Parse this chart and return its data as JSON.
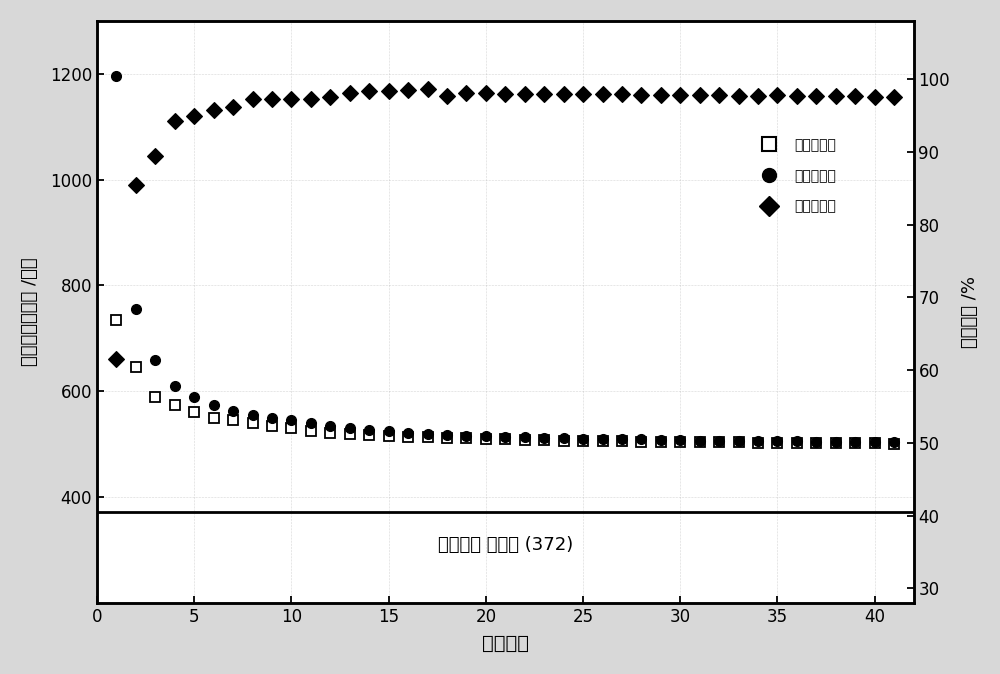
{
  "charge_x": [
    1,
    2,
    3,
    4,
    5,
    6,
    7,
    8,
    9,
    10,
    11,
    12,
    13,
    14,
    15,
    16,
    17,
    18,
    19,
    20,
    21,
    22,
    23,
    24,
    25,
    26,
    27,
    28,
    29,
    30,
    31,
    32,
    33,
    34,
    35,
    36,
    37,
    38,
    39,
    40,
    41
  ],
  "charge_y": [
    735,
    645,
    590,
    575,
    560,
    550,
    545,
    540,
    535,
    530,
    525,
    522,
    520,
    518,
    516,
    514,
    513,
    512,
    511,
    510,
    509,
    508,
    508,
    507,
    507,
    506,
    506,
    505,
    505,
    505,
    504,
    504,
    504,
    503,
    503,
    503,
    502,
    502,
    502,
    502,
    501
  ],
  "discharge_x": [
    1,
    2,
    3,
    4,
    5,
    6,
    7,
    8,
    9,
    10,
    11,
    12,
    13,
    14,
    15,
    16,
    17,
    18,
    19,
    20,
    21,
    22,
    23,
    24,
    25,
    26,
    27,
    28,
    29,
    30,
    31,
    32,
    33,
    34,
    35,
    36,
    37,
    38,
    39,
    40,
    41
  ],
  "discharge_y": [
    1195,
    755,
    660,
    610,
    590,
    575,
    562,
    555,
    550,
    545,
    540,
    535,
    530,
    527,
    525,
    522,
    520,
    518,
    516,
    515,
    514,
    513,
    512,
    511,
    510,
    510,
    509,
    509,
    508,
    508,
    507,
    507,
    507,
    506,
    506,
    506,
    505,
    505,
    505,
    505,
    504
  ],
  "efficiency_x": [
    1,
    2,
    3,
    4,
    5,
    6,
    7,
    8,
    9,
    10,
    11,
    12,
    13,
    14,
    15,
    16,
    17,
    18,
    19,
    20,
    21,
    22,
    23,
    24,
    25,
    26,
    27,
    28,
    29,
    30,
    31,
    32,
    33,
    34,
    35,
    36,
    37,
    38,
    39,
    40,
    41
  ],
  "efficiency_y": [
    61.5,
    85.4,
    89.4,
    94.3,
    94.9,
    95.7,
    96.1,
    97.3,
    97.3,
    97.2,
    97.2,
    97.6,
    98.1,
    98.3,
    98.3,
    98.5,
    98.6,
    97.7,
    98.1,
    98.1,
    97.9,
    97.9,
    98.0,
    97.9,
    97.9,
    97.9,
    97.9,
    97.8,
    97.8,
    97.8,
    97.8,
    97.8,
    97.7,
    97.7,
    97.8,
    97.7,
    97.7,
    97.7,
    97.7,
    97.6,
    97.5
  ],
  "graphite_line_y": 372,
  "graphite_label": "石墨理论 比容量 (372)",
  "xlabel": "循环圈数",
  "ylabel_left": "比容量（毫安时 /克）",
  "ylabel_right": "循环效率 /%",
  "legend_charge": "充电比容量",
  "legend_discharge": "放电比容量",
  "legend_efficiency": "充放电效率",
  "ylim_left": [
    200,
    1300
  ],
  "ylim_right": [
    28,
    108
  ],
  "xlim": [
    0,
    42
  ],
  "yticks_left": [
    400,
    600,
    800,
    1000,
    1200
  ],
  "yticks_right": [
    30,
    40,
    50,
    60,
    70,
    80,
    90,
    100
  ],
  "xticks": [
    0,
    5,
    10,
    15,
    20,
    25,
    30,
    35,
    40
  ],
  "fig_bg": "#d8d8d8",
  "plot_bg": "#ffffff",
  "dotted_bg": true
}
